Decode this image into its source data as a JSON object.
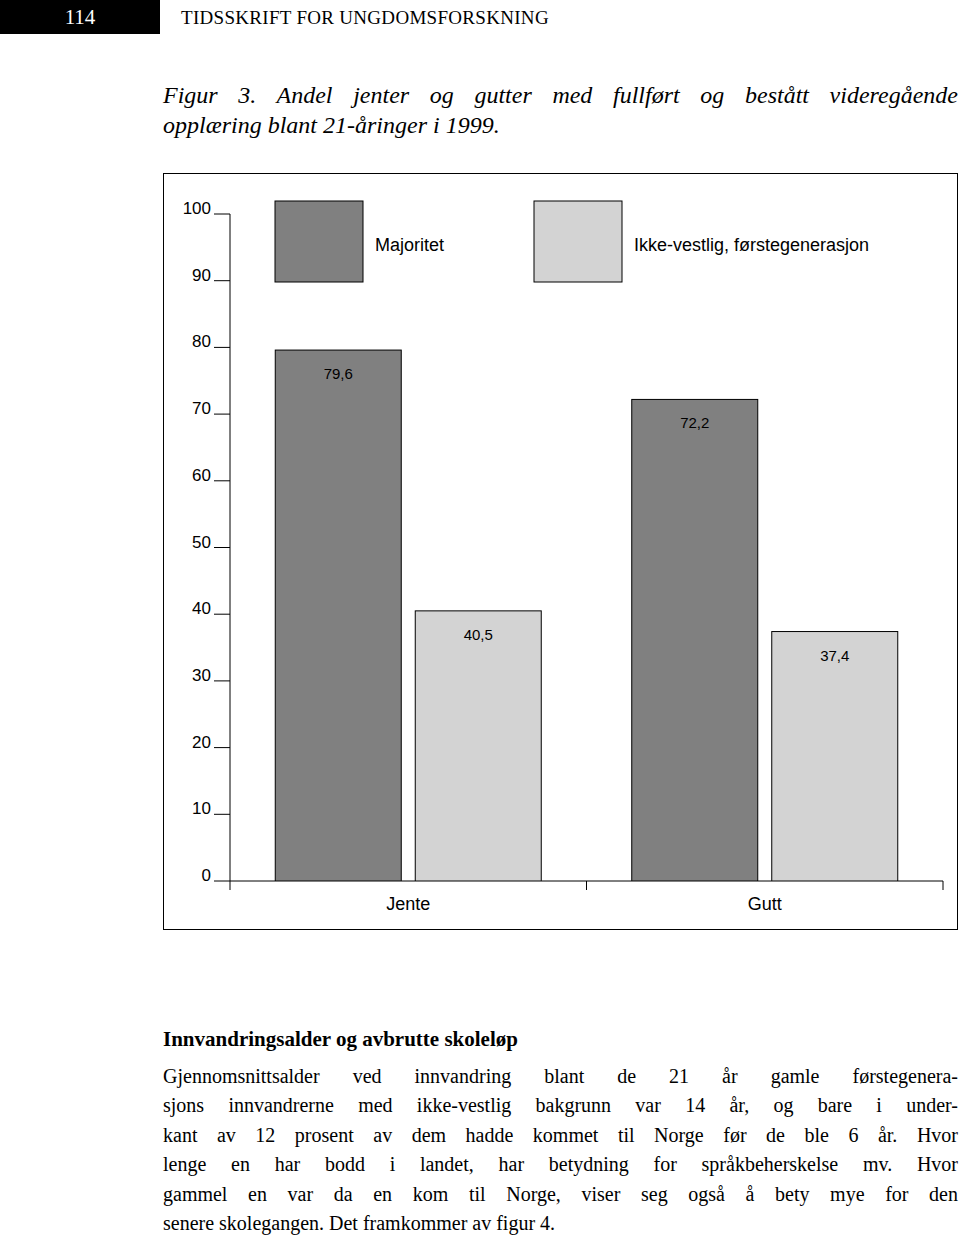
{
  "header": {
    "page_number": "114",
    "journal": "TIDSSKRIFT FOR UNGDOMSFORSKNING"
  },
  "caption": [
    "Figur 3. Andel jenter og gutter med fullført og bestått videregående",
    "opplæring blant 21-åringer i 1999."
  ],
  "chart_data": {
    "type": "bar",
    "categories": [
      "Jente",
      "Gutt"
    ],
    "series": [
      {
        "name": "Majoritet",
        "color": "#808080",
        "values": [
          79.6,
          72.2
        ],
        "value_labels": [
          "79,6",
          "72,2"
        ]
      },
      {
        "name": "Ikke-vestlig, førstegenerasjon",
        "color": "#d3d3d3",
        "values": [
          40.5,
          37.4
        ],
        "value_labels": [
          "40,5",
          "37,4"
        ]
      }
    ],
    "ylim": [
      0,
      100
    ],
    "yticks": [
      0,
      10,
      20,
      30,
      40,
      50,
      60,
      70,
      80,
      90,
      100
    ],
    "grid": false,
    "legend": "top",
    "data_labels": true
  },
  "section": {
    "heading": "Innvandringsalder og avbrutte skoleløp",
    "lines": [
      "Gjennomsnittsalder ved innvandring blant de 21 år gamle førstegenera-",
      "sjons innvandrerne med ikke-vestlig bakgrunn var 14 år, og bare i under-",
      "kant av 12 prosent av dem hadde kommet til Norge før de ble 6 år. Hvor",
      "lenge en har bodd i landet, har betydning for språkbeherskelse mv. Hvor",
      "gammel en var da en kom til Norge, viser seg også å bety mye for den",
      "senere skolegangen. Det framkommer av figur 4."
    ]
  }
}
